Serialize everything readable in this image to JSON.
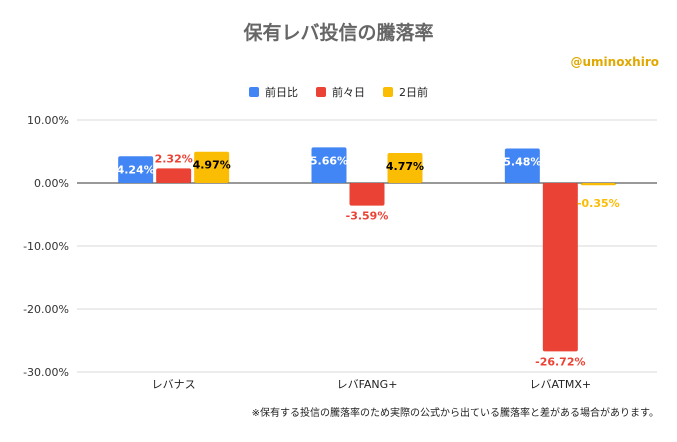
{
  "title": "保有レバ投信の騰落率",
  "handle": "@uminoxhiro",
  "footnote": "※保有する投信の騰落率のため実際の公式から出ている騰落率と差がある場合があります。",
  "colors": {
    "series0": "#4285f4",
    "series1": "#ea4335",
    "series2": "#fbbc04"
  },
  "chart_data": {
    "type": "bar",
    "categories": [
      "レバナス",
      "レバFANG+",
      "レバATMX+"
    ],
    "series": [
      {
        "name": "前日比",
        "values": [
          4.24,
          5.66,
          5.48
        ],
        "labels": [
          "4.24%",
          "5.66%",
          "5.48%"
        ]
      },
      {
        "name": "前々日",
        "values": [
          2.32,
          -3.59,
          -26.72
        ],
        "labels": [
          "2.32%",
          "-3.59%",
          "-26.72%"
        ]
      },
      {
        "name": "2日前",
        "values": [
          4.97,
          4.77,
          -0.35
        ],
        "labels": [
          "4.97%",
          "4.77%",
          "-0.35%"
        ]
      }
    ],
    "ylim": [
      -30,
      10
    ],
    "yticks": [
      10,
      0,
      -10,
      -20,
      -30
    ],
    "ytick_labels": [
      "10.00%",
      "0.00%",
      "-10.00%",
      "-20.00%",
      "-30.00%"
    ],
    "legend_position": "top",
    "grid": true
  }
}
